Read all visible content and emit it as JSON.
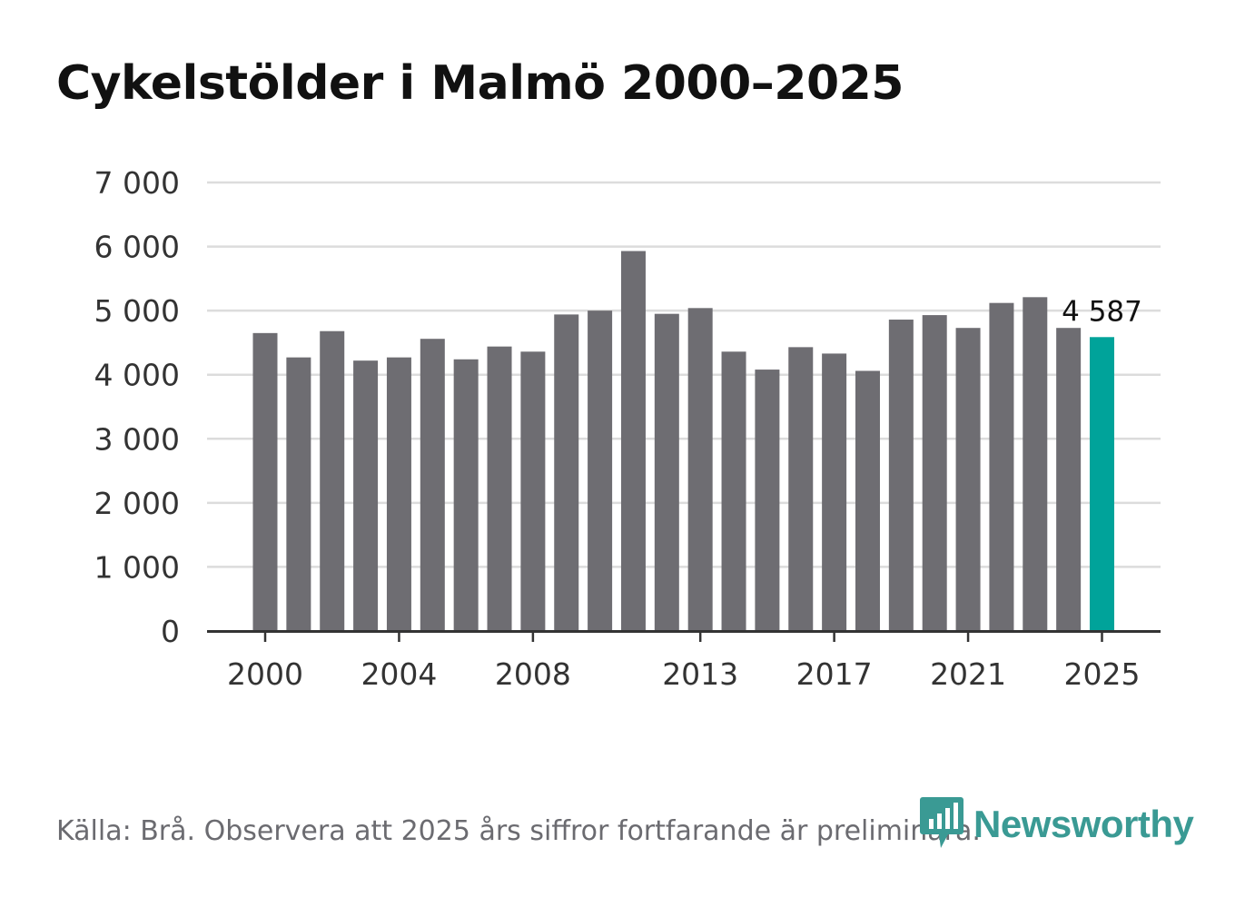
{
  "title": "Cykelstölder i Malmö 2000–2025",
  "source": "Källa: Brå. Observera att 2025 års siffror fortfarande är preliminära.",
  "brand": {
    "name": "Newsworthy",
    "icon": "newsworthy-logo-icon",
    "color": "#3a9a94"
  },
  "colors": {
    "bar": "#6e6d72",
    "highlight": "#00a39a",
    "grid": "#dcdcdc",
    "axis": "#333333"
  },
  "chart_data": {
    "type": "bar",
    "title": "Cykelstölder i Malmö 2000–2025",
    "xlabel": "",
    "ylabel": "",
    "ylim": [
      0,
      7000
    ],
    "yticks": [
      0,
      1000,
      2000,
      3000,
      4000,
      5000,
      6000,
      7000
    ],
    "ytick_labels": [
      "0",
      "1 000",
      "2 000",
      "3 000",
      "4 000",
      "5 000",
      "6 000",
      "7 000"
    ],
    "xtick_labels": [
      "2000",
      "2004",
      "2008",
      "2013",
      "2017",
      "2021",
      "2025"
    ],
    "categories": [
      "2000",
      "2001",
      "2002",
      "2003",
      "2004",
      "2005",
      "2006",
      "2007",
      "2008",
      "2009",
      "2010",
      "2011",
      "2012",
      "2013",
      "2014",
      "2015",
      "2016",
      "2017",
      "2018",
      "2019",
      "2020",
      "2021",
      "2022",
      "2023",
      "2024",
      "2025"
    ],
    "values": [
      4650,
      4270,
      4680,
      4220,
      4270,
      4560,
      4240,
      4440,
      4360,
      4940,
      5000,
      5930,
      4950,
      5040,
      4360,
      4080,
      4430,
      4330,
      4060,
      4860,
      4930,
      4730,
      5120,
      5210,
      4730,
      4587
    ],
    "highlight": {
      "category": "2025",
      "label": "4 587"
    },
    "grid": true
  }
}
